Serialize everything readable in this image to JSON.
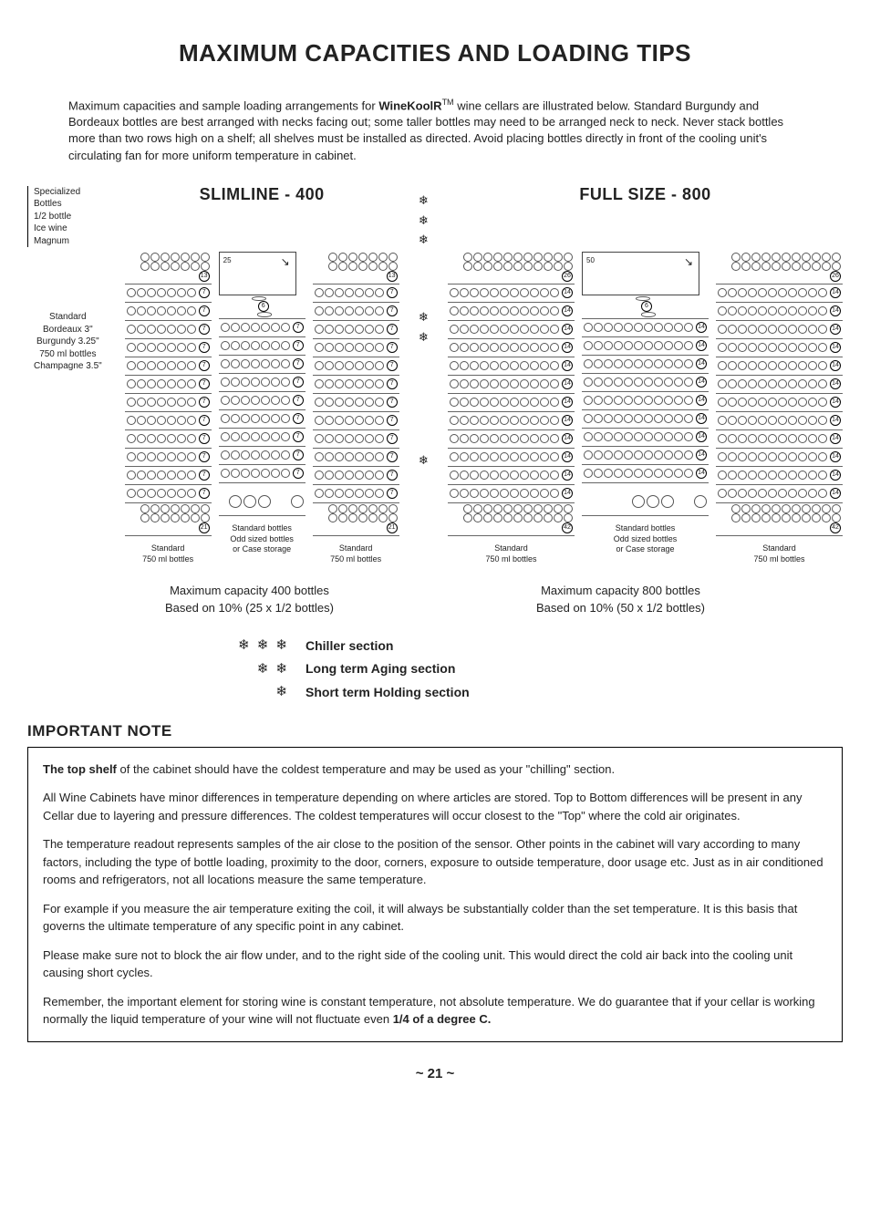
{
  "title": "MAXIMUM CAPACITIES AND LOADING TIPS",
  "intro_pre": "Maximum capacities and sample loading arrangements for ",
  "brand": "WineKoolR",
  "tm": "TM",
  "intro_post": " wine cellars are illustrated below. Standard Burgundy and Bordeaux bottles are best arranged with necks facing out; some taller bottles may need to be arranged neck to neck. Never stack bottles more than two rows high on a shelf; all shelves must be installed as directed. Avoid placing bottles directly in front of the cooling unit's circulating fan for more uniform temperature in cabinet.",
  "spec_top": "Specialized Bottles\n1/2 bottle\nIce wine\nMagnum",
  "spec_mid": "Standard\nBordeaux 3\"\nBurgundy 3.25\"\n750 ml bottles\nChampagne 3.5\"",
  "models": {
    "slimline": {
      "title": "SLIMLINE - 400",
      "open_num": "25",
      "open_mid": "6",
      "cap_line1": "Maximum capacity 400 bottles",
      "cap_line2": "Based on 10% (25 x 1/2 bottles)",
      "col_labels": {
        "std1": "Standard\n750 ml bottles",
        "odd": "Standard bottles\nOdd sized bottles\nor Case storage",
        "std2": "Standard\n750 ml bottles"
      },
      "shelves_std": [
        "13",
        "7",
        "7",
        "7",
        "7",
        "7",
        "7",
        "7",
        "7",
        "7",
        "7",
        "7",
        "7",
        "21"
      ],
      "shelves_odd_rest": [
        "7",
        "7",
        "7",
        "7",
        "7",
        "7",
        "7",
        "7",
        "7"
      ]
    },
    "fullsize": {
      "title": "FULL SIZE - 800",
      "open_num": "50",
      "open_mid": "6",
      "cap_line1": "Maximum capacity 800 bottles",
      "cap_line2": "Based on 10% (50 x 1/2 bottles)",
      "col_labels": {
        "std1": "Standard\n750 ml bottles",
        "odd": "Standard bottles\nOdd sized bottles\nor Case storage",
        "std2": "Standard\n750 ml bottles"
      },
      "shelves_std": [
        "26",
        "14",
        "14",
        "14",
        "14",
        "14",
        "14",
        "14",
        "14",
        "14",
        "14",
        "14",
        "14",
        "42"
      ],
      "shelves_odd_rest": [
        "14",
        "14",
        "14",
        "14",
        "14",
        "14",
        "14",
        "14",
        "14"
      ]
    }
  },
  "legend": {
    "chiller": "Chiller section",
    "aging": "Long term  Aging section",
    "holding": "Short term  Holding section"
  },
  "snow": "❄",
  "important_title": "IMPORTANT NOTE",
  "note": {
    "p1a": "The top shelf",
    "p1b": " of the cabinet should have the coldest temperature and may be used as your \"chilling\" section.",
    "p2": "All Wine Cabinets have minor differences in temperature depending on where articles are stored. Top to Bottom differences will be present in any Cellar due to layering and pressure differences. The coldest temperatures will occur closest to the \"Top\" where the cold air originates.",
    "p3": "The temperature readout represents samples of the air close to the position of the sensor. Other points in the cabinet will vary according to many factors, including the type of bottle loading, proximity to the door, corners, exposure to outside temperature, door usage etc. Just as in air conditioned rooms and refrigerators, not all locations measure the same temperature.",
    "p4": "For example if you measure the air temperature exiting the coil, it will always be substantially colder than the set temperature. It is this basis that governs the ultimate temperature of any specific point in any cabinet.",
    "p5": "Please make sure not to block the air flow under, and to the right side of the cooling unit. This would direct the cold air back into the cooling unit causing short cycles.",
    "p6a": "Remember, the important element for storing wine is constant temperature, not absolute temperature. We do guarantee that if your cellar is working normally the liquid temperature of your wine will not fluctuate even ",
    "p6b": "1/4 of a degree C."
  },
  "page": "~ 21 ~",
  "diagram": {
    "circles_per_row_slim": 7,
    "circles_per_row_full": 11
  }
}
